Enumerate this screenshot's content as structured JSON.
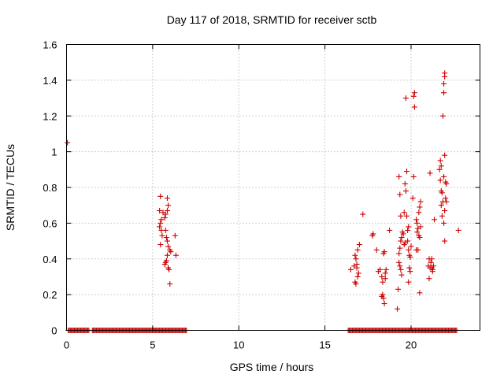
{
  "chart_data": {
    "type": "scatter",
    "title": "Day 117 of 2018, SRMTID for receiver sctb",
    "xlabel": "GPS time / hours",
    "ylabel": "SRMTID / TECUs",
    "xlim": [
      0,
      24
    ],
    "ylim": [
      0,
      1.6
    ],
    "xticks": [
      0,
      5,
      10,
      15,
      20
    ],
    "xtick_labels": [
      "0",
      "5",
      "10",
      "15",
      "20"
    ],
    "yticks": [
      0,
      0.2,
      0.4,
      0.6,
      0.8,
      1.0,
      1.2,
      1.4,
      1.6
    ],
    "ytick_labels": [
      "0",
      "0.2",
      "0.4",
      "0.6",
      "0.8",
      "1",
      "1.2",
      "1.4",
      "1.6"
    ],
    "grid": true,
    "marker": "+",
    "marker_color": "#cc0000",
    "zero_baseline_segments": [
      [
        0.1,
        1.3
      ],
      [
        1.5,
        7.0
      ],
      [
        16.35,
        22.7
      ]
    ],
    "series": [
      {
        "name": "SRMTID",
        "points": [
          [
            0.05,
            1.05
          ],
          [
            5.45,
            0.75
          ],
          [
            5.4,
            0.67
          ],
          [
            5.5,
            0.62
          ],
          [
            5.45,
            0.6
          ],
          [
            5.4,
            0.58
          ],
          [
            5.5,
            0.56
          ],
          [
            5.55,
            0.53
          ],
          [
            5.45,
            0.48
          ],
          [
            5.6,
            0.66
          ],
          [
            5.7,
            0.63
          ],
          [
            5.75,
            0.56
          ],
          [
            5.8,
            0.52
          ],
          [
            5.85,
            0.5
          ],
          [
            5.9,
            0.47
          ],
          [
            5.75,
            0.65
          ],
          [
            5.85,
            0.67
          ],
          [
            5.9,
            0.7
          ],
          [
            5.85,
            0.74
          ],
          [
            5.7,
            0.37
          ],
          [
            5.75,
            0.38
          ],
          [
            5.8,
            0.39
          ],
          [
            5.85,
            0.42
          ],
          [
            5.9,
            0.35
          ],
          [
            5.95,
            0.34
          ],
          [
            6.0,
            0.45
          ],
          [
            6.05,
            0.44
          ],
          [
            6.0,
            0.26
          ],
          [
            6.3,
            0.53
          ],
          [
            6.35,
            0.42
          ],
          [
            16.5,
            0.34
          ],
          [
            16.7,
            0.36
          ],
          [
            16.75,
            0.42
          ],
          [
            16.8,
            0.4
          ],
          [
            16.85,
            0.37
          ],
          [
            16.9,
            0.45
          ],
          [
            16.75,
            0.27
          ],
          [
            16.8,
            0.26
          ],
          [
            16.9,
            0.3
          ],
          [
            16.95,
            0.32
          ],
          [
            17.0,
            0.48
          ],
          [
            16.85,
            0.35
          ],
          [
            17.2,
            0.65
          ],
          [
            17.75,
            0.53
          ],
          [
            17.8,
            0.54
          ],
          [
            18.0,
            0.45
          ],
          [
            18.1,
            0.33
          ],
          [
            18.2,
            0.34
          ],
          [
            18.3,
            0.3
          ],
          [
            18.35,
            0.27
          ],
          [
            18.4,
            0.43
          ],
          [
            18.45,
            0.44
          ],
          [
            18.3,
            0.19
          ],
          [
            18.35,
            0.2
          ],
          [
            18.4,
            0.18
          ],
          [
            18.45,
            0.15
          ],
          [
            18.5,
            0.32
          ],
          [
            18.55,
            0.34
          ],
          [
            18.5,
            0.29
          ],
          [
            18.75,
            0.56
          ],
          [
            19.2,
            0.12
          ],
          [
            19.25,
            0.23
          ],
          [
            19.3,
            0.43
          ],
          [
            19.35,
            0.46
          ],
          [
            19.4,
            0.5
          ],
          [
            19.45,
            0.52
          ],
          [
            19.3,
            0.38
          ],
          [
            19.35,
            0.36
          ],
          [
            19.4,
            0.34
          ],
          [
            19.45,
            0.31
          ],
          [
            19.3,
            0.86
          ],
          [
            19.35,
            0.76
          ],
          [
            19.4,
            0.64
          ],
          [
            19.5,
            0.55
          ],
          [
            19.55,
            0.54
          ],
          [
            19.6,
            0.48
          ],
          [
            19.65,
            0.49
          ],
          [
            19.6,
            0.66
          ],
          [
            19.65,
            0.82
          ],
          [
            19.7,
            0.78
          ],
          [
            19.75,
            0.89
          ],
          [
            19.7,
            1.3
          ],
          [
            19.75,
            0.64
          ],
          [
            19.8,
            0.5
          ],
          [
            19.85,
            0.45
          ],
          [
            19.9,
            0.42
          ],
          [
            19.95,
            0.41
          ],
          [
            19.85,
            0.27
          ],
          [
            19.9,
            0.35
          ],
          [
            19.95,
            0.33
          ],
          [
            19.8,
            0.56
          ],
          [
            19.85,
            0.58
          ],
          [
            20.0,
            0.47
          ],
          [
            20.1,
            0.74
          ],
          [
            20.15,
            0.86
          ],
          [
            20.2,
            1.25
          ],
          [
            20.15,
            1.31
          ],
          [
            20.2,
            1.33
          ],
          [
            20.3,
            0.62
          ],
          [
            20.35,
            0.6
          ],
          [
            20.4,
            0.57
          ],
          [
            20.35,
            0.55
          ],
          [
            20.3,
            0.45
          ],
          [
            20.4,
            0.45
          ],
          [
            20.45,
            0.66
          ],
          [
            20.5,
            0.69
          ],
          [
            20.55,
            0.72
          ],
          [
            20.5,
            0.52
          ],
          [
            20.55,
            0.58
          ],
          [
            20.5,
            0.21
          ],
          [
            20.45,
            0.53
          ],
          [
            21.0,
            0.36
          ],
          [
            21.05,
            0.4
          ],
          [
            21.1,
            0.35
          ],
          [
            21.15,
            0.38
          ],
          [
            21.2,
            0.35
          ],
          [
            21.25,
            0.34
          ],
          [
            21.3,
            0.36
          ],
          [
            21.05,
            0.29
          ],
          [
            21.1,
            0.88
          ],
          [
            21.2,
            0.4
          ],
          [
            21.25,
            0.33
          ],
          [
            21.35,
            0.62
          ],
          [
            21.65,
            0.9
          ],
          [
            21.7,
            0.95
          ],
          [
            21.75,
            0.92
          ],
          [
            21.7,
            0.84
          ],
          [
            21.75,
            0.78
          ],
          [
            21.8,
            0.77
          ],
          [
            21.85,
            0.72
          ],
          [
            21.8,
            0.64
          ],
          [
            21.75,
            0.7
          ],
          [
            21.9,
            1.38
          ],
          [
            21.95,
            1.42
          ],
          [
            21.95,
            1.44
          ],
          [
            21.9,
            1.33
          ],
          [
            21.85,
            1.2
          ],
          [
            21.95,
            0.98
          ],
          [
            21.9,
            0.86
          ],
          [
            22.0,
            0.83
          ],
          [
            22.05,
            0.82
          ],
          [
            22.0,
            0.74
          ],
          [
            21.95,
            0.67
          ],
          [
            21.9,
            0.6
          ],
          [
            21.95,
            0.5
          ],
          [
            22.05,
            0.72
          ],
          [
            22.75,
            0.56
          ]
        ]
      }
    ]
  }
}
